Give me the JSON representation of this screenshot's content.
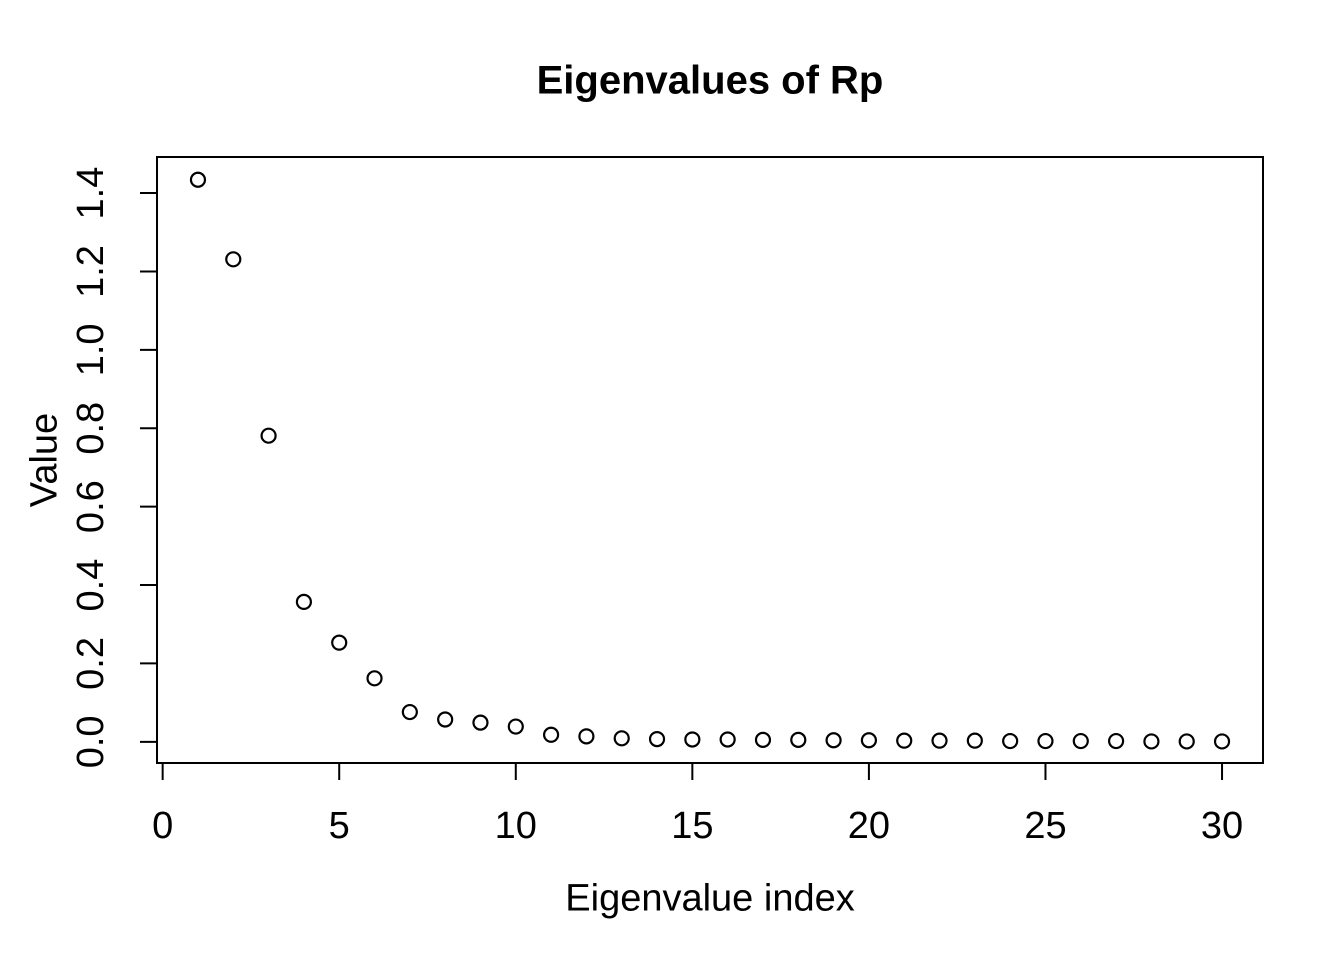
{
  "figure": {
    "background": "#ffffff",
    "foreground": "#000000"
  },
  "chart_data": {
    "type": "scatter",
    "title": "Eigenvalues of Rp",
    "xlabel": "Eigenvalue index",
    "ylabel": "Value",
    "marker": "open-circle",
    "marker_color": "#000000",
    "grid": false,
    "legend": "none",
    "x": [
      1,
      2,
      3,
      4,
      5,
      6,
      7,
      8,
      9,
      10,
      11,
      12,
      13,
      14,
      15,
      16,
      17,
      18,
      19,
      20,
      21,
      22,
      23,
      24,
      25,
      26,
      27,
      28,
      29,
      30
    ],
    "y": [
      1.434,
      1.231,
      0.781,
      0.357,
      0.253,
      0.162,
      0.076,
      0.057,
      0.049,
      0.039,
      0.018,
      0.014,
      0.009,
      0.007,
      0.006,
      0.006,
      0.005,
      0.005,
      0.004,
      0.004,
      0.003,
      0.003,
      0.003,
      0.002,
      0.002,
      0.002,
      0.002,
      0.001,
      0.001,
      0.001
    ],
    "x_ticks": [
      0,
      5,
      10,
      15,
      20,
      25,
      30
    ],
    "y_ticks": [
      0.0,
      0.2,
      0.4,
      0.6,
      0.8,
      1.0,
      1.2,
      1.4
    ],
    "xlim": [
      -0.16,
      31.16
    ],
    "ylim": [
      -0.054,
      1.492
    ]
  }
}
